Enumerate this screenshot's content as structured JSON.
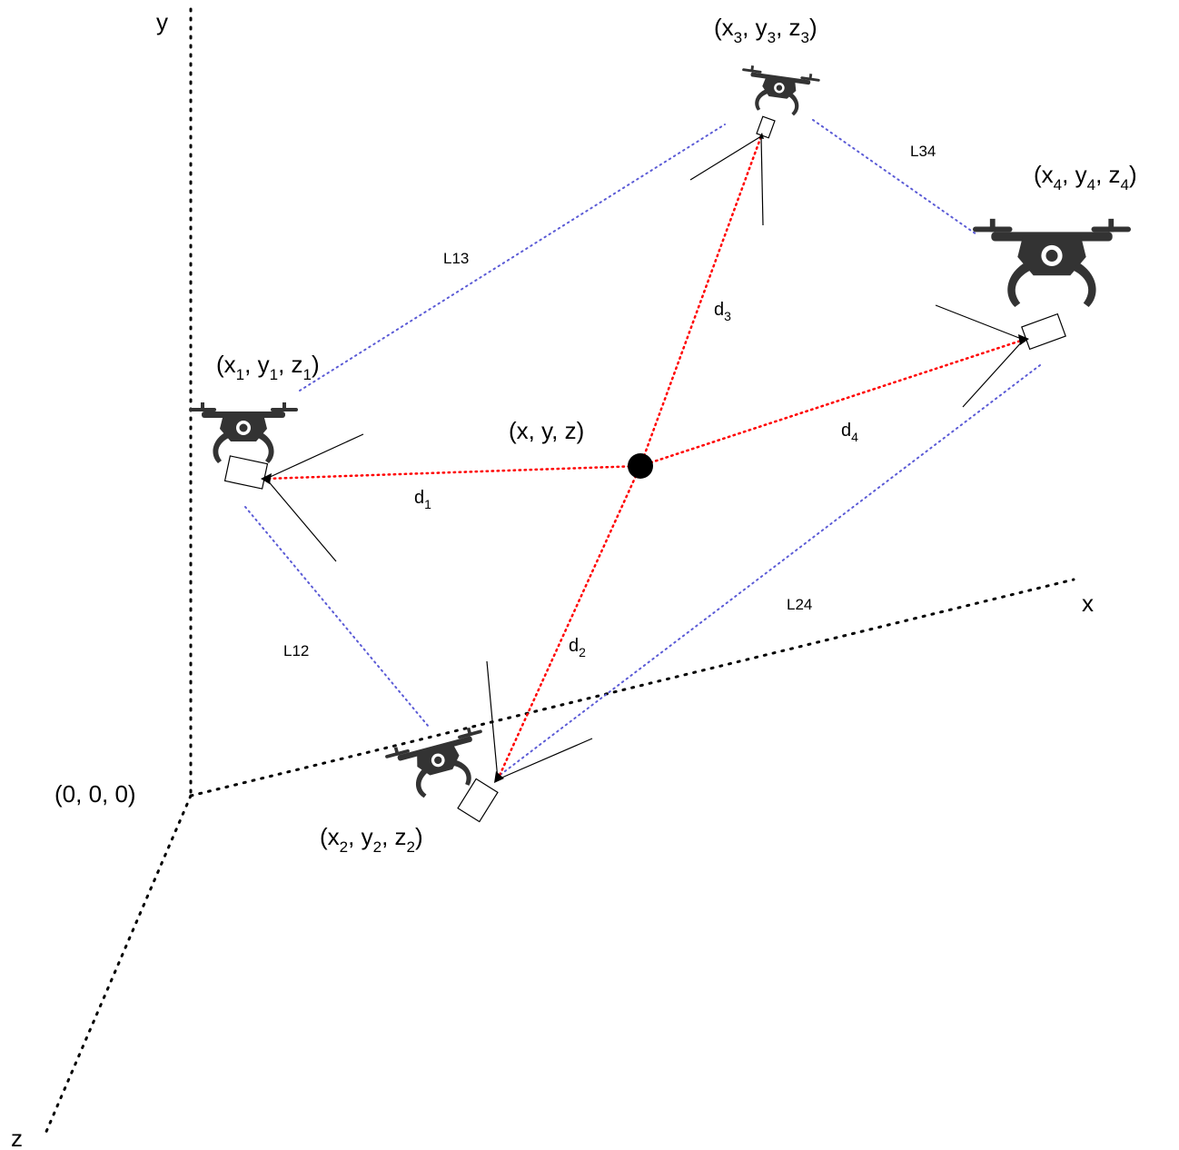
{
  "axes": {
    "origin_label": "(0, 0, 0)",
    "x_label": "x",
    "y_label": "y",
    "z_label": "z"
  },
  "target": {
    "label": "(x, y, z)"
  },
  "drones": [
    {
      "id": "1",
      "label_main": "(x",
      "sub": "1",
      "sep": ", y",
      "sep2": ", z",
      "close": ")"
    },
    {
      "id": "2",
      "label_main": "(x",
      "sub": "2",
      "sep": ", y",
      "sep2": ", z",
      "close": ")"
    },
    {
      "id": "3",
      "label_main": "(x",
      "sub": "3",
      "sep": ", y",
      "sep2": ", z",
      "close": ")"
    },
    {
      "id": "4",
      "label_main": "(x",
      "sub": "4",
      "sep": ", y",
      "sep2": ", z",
      "close": ")"
    }
  ],
  "distances": [
    {
      "base": "d",
      "sub": "1"
    },
    {
      "base": "d",
      "sub": "2"
    },
    {
      "base": "d",
      "sub": "3"
    },
    {
      "base": "d",
      "sub": "4"
    }
  ],
  "links": {
    "l12": "L12",
    "l13": "L13",
    "l24": "L24",
    "l34": "L34"
  },
  "colors": {
    "distance_line": "#ff0000",
    "link_line": "#5b5bd6",
    "drone": "#333333"
  }
}
